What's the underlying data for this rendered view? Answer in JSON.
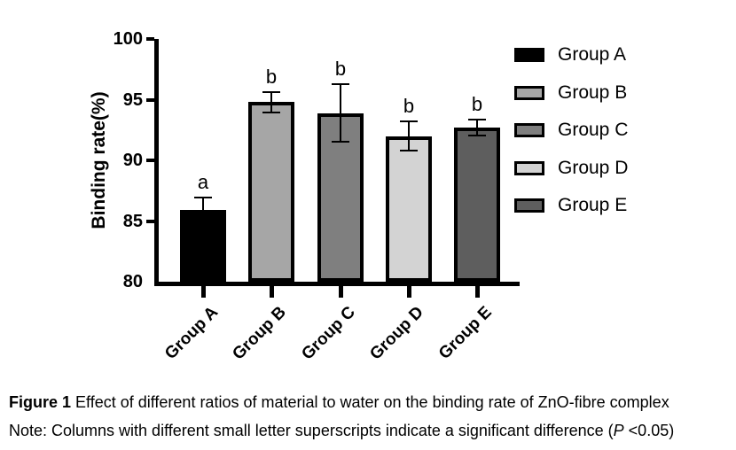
{
  "figure": {
    "caption_label": "Figure 1",
    "caption_text": " Effect of different ratios of material to water on the binding rate of ZnO-fibre complex",
    "note_prefix": "Note: Columns with different small letter superscripts indicate a significant difference (",
    "note_italic": "P",
    "note_suffix": " <0.05)"
  },
  "chart_data": {
    "type": "bar",
    "title": "",
    "xlabel": "",
    "ylabel": "Binding rate(%)",
    "ylim": [
      80,
      100
    ],
    "yticks": [
      80,
      85,
      90,
      95,
      100
    ],
    "grid": false,
    "legend_position": "right",
    "categories": [
      "Group A",
      "Group B",
      "Group C",
      "Group D",
      "Group E"
    ],
    "values": [
      85.9,
      94.8,
      93.9,
      92.0,
      92.7
    ],
    "errors": [
      1.0,
      0.85,
      2.4,
      1.2,
      0.65
    ],
    "significance_letters": [
      "a",
      "b",
      "b",
      "b",
      "b"
    ],
    "bar_colors": [
      "#000000",
      "#a6a6a6",
      "#7f7f7f",
      "#d3d3d3",
      "#5e5e5e"
    ],
    "bar_border_color": "#000000",
    "axis_color": "#000000",
    "legend": [
      {
        "label": "Group A",
        "color": "#000000"
      },
      {
        "label": "Group B",
        "color": "#a6a6a6"
      },
      {
        "label": "Group C",
        "color": "#7f7f7f"
      },
      {
        "label": "Group D",
        "color": "#d3d3d3"
      },
      {
        "label": "Group E",
        "color": "#5e5e5e"
      }
    ]
  }
}
